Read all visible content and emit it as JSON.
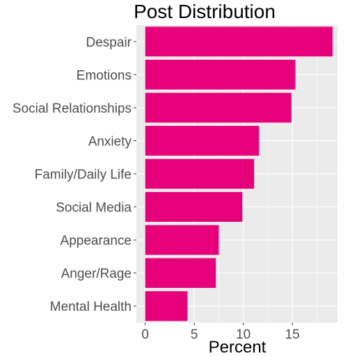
{
  "chart_data": {
    "type": "bar",
    "orientation": "horizontal",
    "title": "Post Distribution",
    "xlabel": "Percent",
    "ylabel": "",
    "categories": [
      "Despair",
      "Emotions",
      "Social Relationships",
      "Anxiety",
      "Family/Daily Life",
      "Social Media",
      "Appearance",
      "Anger/Rage",
      "Mental Health"
    ],
    "values": [
      19.1,
      15.3,
      14.9,
      11.6,
      11.1,
      9.9,
      7.5,
      7.2,
      4.3
    ],
    "xlim": [
      -0.9,
      19.6
    ],
    "xticks": [
      0,
      5,
      10,
      15
    ],
    "xtick_labels": [
      "0",
      "5",
      "10",
      "15"
    ],
    "grid": true,
    "colors": {
      "bar": "#e6007a",
      "panel": "#ebebeb",
      "grid": "#ffffff",
      "text": "#4d4d4d"
    }
  }
}
